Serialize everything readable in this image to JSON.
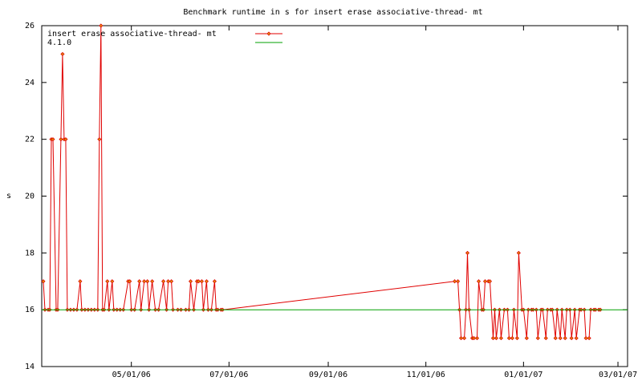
{
  "chart_data": {
    "type": "line",
    "title": "Benchmark runtime in s for insert erase associative-thread-  mt",
    "y_label": "s",
    "xlim": [
      "2006-03-06",
      "2007-03-07"
    ],
    "xticks": [
      {
        "value": "2006-05-01",
        "label": "05/01/06"
      },
      {
        "value": "2006-07-01",
        "label": "07/01/06"
      },
      {
        "value": "2006-09-01",
        "label": "09/01/06"
      },
      {
        "value": "2006-11-01",
        "label": "11/01/06"
      },
      {
        "value": "2007-01-01",
        "label": "01/01/07"
      },
      {
        "value": "2007-03-01",
        "label": "03/01/07"
      }
    ],
    "ylim": [
      14,
      26
    ],
    "yticks": [
      14,
      16,
      18,
      20,
      22,
      24,
      26
    ],
    "legend": "top-left",
    "series": [
      {
        "name": "insert erase associative-thread-  mt",
        "color": "#e00000",
        "markers": true,
        "x": [
          "2006-03-07",
          "2006-03-08",
          "2006-03-10",
          "2006-03-11",
          "2006-03-12",
          "2006-03-13",
          "2006-03-15",
          "2006-03-16",
          "2006-03-18",
          "2006-03-19",
          "2006-03-20",
          "2006-03-21",
          "2006-03-22",
          "2006-03-24",
          "2006-03-26",
          "2006-03-28",
          "2006-03-30",
          "2006-03-31",
          "2006-04-02",
          "2006-04-04",
          "2006-04-06",
          "2006-04-08",
          "2006-04-10",
          "2006-04-11",
          "2006-04-12",
          "2006-04-13",
          "2006-04-14",
          "2006-04-16",
          "2006-04-17",
          "2006-04-19",
          "2006-04-20",
          "2006-04-22",
          "2006-04-24",
          "2006-04-26",
          "2006-04-29",
          "2006-04-30",
          "2006-05-01",
          "2006-05-03",
          "2006-05-06",
          "2006-05-07",
          "2006-05-09",
          "2006-05-11",
          "2006-05-12",
          "2006-05-14",
          "2006-05-16",
          "2006-05-18",
          "2006-05-21",
          "2006-05-23",
          "2006-05-24",
          "2006-05-26",
          "2006-05-27",
          "2006-05-30",
          "2006-06-01",
          "2006-06-04",
          "2006-06-06",
          "2006-06-07",
          "2006-06-09",
          "2006-06-11",
          "2006-06-12",
          "2006-06-14",
          "2006-06-15",
          "2006-06-17",
          "2006-06-18",
          "2006-06-20",
          "2006-06-22",
          "2006-06-23",
          "2006-06-24",
          "2006-06-26",
          "2006-06-27",
          "2006-11-19",
          "2006-11-21",
          "2006-11-22",
          "2006-11-23",
          "2006-11-25",
          "2006-11-26",
          "2006-11-27",
          "2006-11-28",
          "2006-11-30",
          "2006-12-01",
          "2006-12-03",
          "2006-12-04",
          "2006-12-06",
          "2006-12-07",
          "2006-12-08",
          "2006-12-10",
          "2006-12-11",
          "2006-12-13",
          "2006-12-14",
          "2006-12-15",
          "2006-12-17",
          "2006-12-18",
          "2006-12-20",
          "2006-12-22",
          "2006-12-23",
          "2006-12-25",
          "2006-12-26",
          "2006-12-28",
          "2006-12-29",
          "2006-12-31",
          "2007-01-01",
          "2007-01-03",
          "2007-01-04",
          "2007-01-06",
          "2007-01-07",
          "2007-01-09",
          "2007-01-10",
          "2007-01-12",
          "2007-01-13",
          "2007-01-15",
          "2007-01-16",
          "2007-01-18",
          "2007-01-19",
          "2007-01-21",
          "2007-01-22",
          "2007-01-24",
          "2007-01-25",
          "2007-01-27",
          "2007-01-28",
          "2007-01-30",
          "2007-01-31",
          "2007-02-02",
          "2007-02-03",
          "2007-02-05",
          "2007-02-06",
          "2007-02-08",
          "2007-02-09",
          "2007-02-11",
          "2007-02-12",
          "2007-02-14",
          "2007-02-15",
          "2007-02-17",
          "2007-02-18"
        ],
        "values": [
          17,
          16,
          16,
          16,
          22,
          22,
          16,
          16,
          22,
          25,
          22,
          22,
          16,
          16,
          16,
          16,
          17,
          16,
          16,
          16,
          16,
          16,
          16,
          22,
          26,
          16,
          16,
          17,
          16,
          17,
          16,
          16,
          16,
          16,
          17,
          17,
          16,
          16,
          17,
          16,
          17,
          17,
          16,
          17,
          16,
          16,
          17,
          16,
          17,
          17,
          16,
          16,
          16,
          16,
          16,
          17,
          16,
          17,
          17,
          17,
          16,
          17,
          16,
          16,
          17,
          16,
          16,
          16,
          16,
          17,
          17,
          16,
          15,
          15,
          16,
          18,
          16,
          15,
          15,
          15,
          17,
          16,
          16,
          17,
          17,
          17,
          15,
          16,
          15,
          16,
          15,
          16,
          16,
          15,
          15,
          16,
          15,
          18,
          16,
          16,
          15,
          16,
          16,
          16,
          16,
          15,
          16,
          16,
          15,
          16,
          16,
          16,
          15,
          16,
          15,
          16,
          15,
          16,
          16,
          15,
          16,
          15,
          16,
          16,
          16,
          15,
          15,
          16,
          16,
          16,
          16,
          16
        ]
      },
      {
        "name": "4.1.0",
        "color": "#00a000",
        "markers": false,
        "x": [
          "2006-03-06",
          "2007-03-07"
        ],
        "values": [
          16,
          16
        ]
      }
    ]
  }
}
